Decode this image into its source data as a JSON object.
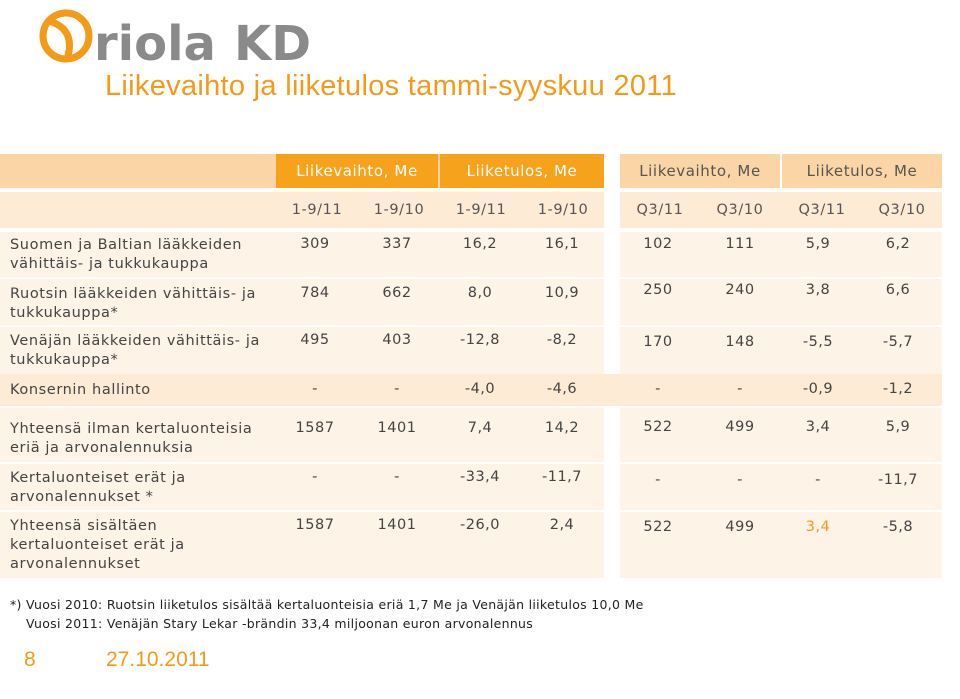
{
  "brand": {
    "name": "Oriola KD",
    "accent": "#F59A16"
  },
  "title": "Liikevaihto ja liiketulos tammi-syyskuu 2011",
  "table": {
    "group_headers": [
      "Liikevaihto, Me",
      "Liiketulos, Me",
      "Liikevaihto, Me",
      "Liiketulos, Me"
    ],
    "sub_headers": [
      "1-9/11",
      "1-9/10",
      "1-9/11",
      "1-9/10",
      "Q3/11",
      "Q3/10",
      "Q3/11",
      "Q3/10"
    ],
    "rows": [
      {
        "label": "Suomen ja Baltian lääkkeiden vähittäis- ja tukkukauppa",
        "values": [
          "309",
          "337",
          "16,2",
          "16,1",
          "102",
          "111",
          "5,9",
          "6,2"
        ]
      },
      {
        "label": "Ruotsin lääkkeiden vähittäis- ja tukkukauppa*",
        "values": [
          "784",
          "662",
          "8,0",
          "10,9",
          "250",
          "240",
          "3,8",
          "6,6"
        ]
      },
      {
        "label": "Venäjän lääkkeiden vähittäis- ja tukkukauppa*",
        "values": [
          "495",
          "403",
          "-12,8",
          "-8,2",
          "170",
          "148",
          "-5,5",
          "-5,7"
        ]
      },
      {
        "label": "Konsernin hallinto",
        "values": [
          "-",
          "-",
          "-4,0",
          "-4,6",
          "-",
          "-",
          "-0,9",
          "-1,2"
        ]
      },
      {
        "label": "Yhteensä ilman kertaluonteisia eriä ja arvonalennuksia",
        "values": [
          "1587",
          "1401",
          "7,4",
          "14,2",
          "522",
          "499",
          "3,4",
          "5,9"
        ]
      },
      {
        "label": "Kertaluonteiset erät ja arvonalennukset *",
        "values": [
          "-",
          "-",
          "-33,4",
          "-11,7",
          "-",
          "-",
          "-",
          "-11,7"
        ]
      },
      {
        "label": "Yhteensä sisältäen kertaluonteiset erät ja arvonalennukset",
        "values": [
          "1587",
          "1401",
          "-26,0",
          "2,4",
          "522",
          "499",
          "3,4",
          "-5,8"
        ]
      }
    ]
  },
  "footnotes": [
    "*) Vuosi 2010: Ruotsin liiketulos sisältää kertaluonteisia eriä 1,7 Me ja Venäjän liiketulos 10,0 Me",
    "Vuosi 2011: Venäjän Stary Lekar -brändin 33,4 miljoonan euron arvonalennus"
  ],
  "footer": {
    "page": "8",
    "date": "27.10.2011"
  }
}
